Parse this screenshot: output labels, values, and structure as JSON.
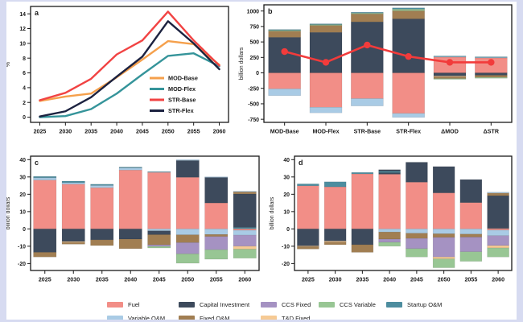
{
  "colors": {
    "fuel": "#F28E87",
    "capital": "#3D4A5C",
    "variable_om": "#A9CBE5",
    "fixed_om": "#A17E52",
    "ccs_fixed": "#A592C2",
    "ccs_variable": "#98C694",
    "startup_om": "#4D8D9F",
    "td_fixed": "#F6CA94",
    "overlay_line": "#F23B3B"
  },
  "legend": {
    "items": [
      {
        "label": "Fuel",
        "color_key": "fuel"
      },
      {
        "label": "Capital Investment",
        "color_key": "capital"
      },
      {
        "label": "CCS Fixed",
        "color_key": "ccs_fixed"
      },
      {
        "label": "CCS Variable",
        "color_key": "ccs_variable"
      },
      {
        "label": "Startup O&M",
        "color_key": "startup_om"
      },
      {
        "label": "Variable O&M",
        "color_key": "variable_om"
      },
      {
        "label": "Fixed O&M",
        "color_key": "fixed_om"
      },
      {
        "label": "T&D Fixed",
        "color_key": "td_fixed"
      }
    ]
  },
  "chart_data": [
    {
      "id": "a",
      "label": "a",
      "type": "line",
      "ylabel": "%",
      "x": [
        2025,
        2030,
        2035,
        2040,
        2045,
        2050,
        2055,
        2060
      ],
      "xlim": [
        2023.2,
        2061.8
      ],
      "ylim": [
        -0.7,
        15.0
      ],
      "yticks": [
        0,
        2,
        4,
        6,
        8,
        10,
        12,
        14
      ],
      "inner_legend": true,
      "series": [
        {
          "name": "MOD-Base",
          "color": "#F5A04C",
          "values": [
            2.2,
            2.8,
            3.2,
            5.4,
            7.8,
            10.3,
            9.9,
            7.1
          ]
        },
        {
          "name": "MOD-Flex",
          "color": "#35949A",
          "values": [
            0.0,
            0.15,
            1.1,
            3.2,
            5.8,
            8.3,
            8.65,
            6.9
          ]
        },
        {
          "name": "STR-Base",
          "color": "#F14343",
          "values": [
            2.3,
            3.3,
            5.2,
            8.5,
            10.4,
            14.3,
            10.4,
            7.0
          ]
        },
        {
          "name": "STR-Flex",
          "color": "#1C2240",
          "values": [
            0.1,
            0.8,
            2.7,
            5.5,
            8.2,
            13.0,
            10.0,
            6.5
          ]
        }
      ]
    },
    {
      "id": "b",
      "label": "b",
      "type": "stacked-bar-line",
      "ylabel": "billion dollars",
      "categories": [
        "MOD-Base",
        "MOD-Flex",
        "STR-Base",
        "STR-Flex",
        "ΔMOD",
        "ΔSTR"
      ],
      "ylim": [
        -800,
        1100
      ],
      "yticks": [
        1000,
        750,
        500,
        250,
        0,
        -250,
        -500,
        -750
      ],
      "bar_frac": 0.78,
      "bars": [
        {
          "pos": [
            [
              "capital",
              575
            ],
            [
              "fixed_om",
              100
            ],
            [
              "ccs_variable",
              14
            ],
            [
              "startup_om",
              12
            ]
          ],
          "neg": [
            [
              "fuel",
              258
            ],
            [
              "variable_om",
              110
            ]
          ]
        },
        {
          "pos": [
            [
              "capital",
              655
            ],
            [
              "fixed_om",
              112
            ],
            [
              "ccs_variable",
              14
            ],
            [
              "startup_om",
              12
            ]
          ],
          "neg": [
            [
              "fuel",
              556
            ],
            [
              "variable_om",
              90
            ]
          ]
        },
        {
          "pos": [
            [
              "capital",
              825
            ],
            [
              "fixed_om",
              128
            ],
            [
              "ccs_variable",
              14
            ],
            [
              "startup_om",
              13
            ]
          ],
          "neg": [
            [
              "fuel",
              415
            ],
            [
              "variable_om",
              120
            ]
          ]
        },
        {
          "pos": [
            [
              "capital",
              873
            ],
            [
              "fixed_om",
              130
            ],
            [
              "ccs_variable",
              28
            ],
            [
              "startup_om",
              20
            ]
          ],
          "neg": [
            [
              "fuel",
              655
            ],
            [
              "variable_om",
              65
            ]
          ]
        },
        {
          "pos": [
            [
              "fuel",
              255
            ],
            [
              "variable_om",
              8
            ],
            [
              "startup_om",
              10
            ]
          ],
          "neg": [
            [
              "capital",
              50
            ],
            [
              "td_fixed",
              12
            ],
            [
              "fixed_om",
              30
            ],
            [
              "ccs_variable",
              12
            ]
          ]
        },
        {
          "pos": [
            [
              "fuel",
              242
            ],
            [
              "variable_om",
              8
            ],
            [
              "startup_om",
              10
            ]
          ],
          "neg": [
            [
              "capital",
              38
            ],
            [
              "fixed_om",
              35
            ],
            [
              "ccs_variable",
              14
            ]
          ]
        }
      ],
      "line_values": [
        345,
        170,
        450,
        265,
        170,
        170
      ],
      "line_color": "#F23B3B"
    },
    {
      "id": "c",
      "label": "c",
      "type": "stacked-bar",
      "ylabel": "billion dollars",
      "categories": [
        2025,
        2030,
        2035,
        2040,
        2045,
        2050,
        2055,
        2060
      ],
      "ylim": [
        -24,
        42
      ],
      "yticks": [
        40,
        30,
        20,
        10,
        0,
        -10,
        -20
      ],
      "bar_frac": 0.8,
      "bars": [
        {
          "pos": [
            [
              "fuel",
              28.2
            ],
            [
              "variable_om",
              1.3
            ],
            [
              "startup_om",
              0.8
            ]
          ],
          "neg": [
            [
              "capital",
              13.5
            ],
            [
              "fixed_om",
              2.7
            ]
          ]
        },
        {
          "pos": [
            [
              "fuel",
              25.8
            ],
            [
              "variable_om",
              0.9
            ],
            [
              "startup_om",
              0.9
            ]
          ],
          "neg": [
            [
              "capital",
              7.3
            ],
            [
              "td_fixed",
              0.5
            ],
            [
              "fixed_om",
              1.0
            ]
          ]
        },
        {
          "pos": [
            [
              "fuel",
              23.8
            ],
            [
              "variable_om",
              1.3
            ],
            [
              "startup_om",
              0.7
            ]
          ],
          "neg": [
            [
              "capital",
              6.3
            ],
            [
              "fixed_om",
              3.3
            ]
          ]
        },
        {
          "pos": [
            [
              "fuel",
              34.0
            ],
            [
              "variable_om",
              1.2
            ],
            [
              "startup_om",
              0.5
            ]
          ],
          "neg": [
            [
              "capital",
              5.9
            ],
            [
              "fixed_om",
              5.5
            ]
          ]
        },
        {
          "pos": [
            [
              "fuel",
              32.6
            ],
            [
              "variable_om",
              0.3
            ],
            [
              "startup_om",
              0.2
            ]
          ],
          "neg": [
            [
              "variable_om",
              1.1
            ],
            [
              "capital",
              2.2
            ],
            [
              "fixed_om",
              5.9
            ],
            [
              "ccs_fixed",
              0.9
            ],
            [
              "ccs_variable",
              0.9
            ]
          ]
        },
        {
          "pos": [
            [
              "fuel",
              29.8
            ],
            [
              "capital",
              9.7
            ],
            [
              "variable_om",
              0.5
            ]
          ],
          "neg": [
            [
              "variable_om",
              3.4
            ],
            [
              "fixed_om",
              4.5
            ],
            [
              "ccs_fixed",
              6.5
            ],
            [
              "ccs_variable",
              5.4
            ]
          ]
        },
        {
          "pos": [
            [
              "fuel",
              15.0
            ],
            [
              "capital",
              14.7
            ],
            [
              "variable_om",
              0.4
            ]
          ],
          "neg": [
            [
              "variable_om",
              3.2
            ],
            [
              "fixed_om",
              1.2
            ],
            [
              "ccs_fixed",
              7.6
            ],
            [
              "ccs_variable",
              5.5
            ]
          ]
        },
        {
          "pos": [
            [
              "startup_om",
              0.9
            ],
            [
              "capital",
              19.3
            ],
            [
              "fixed_om",
              1.2
            ],
            [
              "variable_om",
              0.4
            ]
          ],
          "neg": [
            [
              "fuel",
              0.8
            ],
            [
              "variable_om",
              2.8
            ],
            [
              "ccs_fixed",
              6.4
            ],
            [
              "td_fixed",
              1.7
            ],
            [
              "ccs_variable",
              5.2
            ]
          ]
        }
      ]
    },
    {
      "id": "d",
      "label": "d",
      "type": "stacked-bar",
      "ylabel": "billion dollars",
      "categories": [
        2025,
        2030,
        2035,
        2040,
        2045,
        2050,
        2055,
        2060
      ],
      "ylim": [
        -24,
        42
      ],
      "yticks": [
        40,
        30,
        20,
        10,
        0,
        -10,
        -20
      ],
      "bar_frac": 0.8,
      "bars": [
        {
          "pos": [
            [
              "fuel",
              24.9
            ],
            [
              "startup_om",
              1.1
            ]
          ],
          "neg": [
            [
              "capital",
              9.8
            ],
            [
              "td_fixed",
              0.4
            ],
            [
              "fixed_om",
              1.4
            ]
          ]
        },
        {
          "pos": [
            [
              "fuel",
              24.3
            ],
            [
              "startup_om",
              2.9
            ]
          ],
          "neg": [
            [
              "capital",
              7.0
            ],
            [
              "td_fixed",
              0.6
            ],
            [
              "fixed_om",
              1.5
            ]
          ]
        },
        {
          "pos": [
            [
              "fuel",
              31.8
            ],
            [
              "startup_om",
              0.8
            ]
          ],
          "neg": [
            [
              "capital",
              9.1
            ],
            [
              "fixed_om",
              4.4
            ]
          ]
        },
        {
          "pos": [
            [
              "fuel",
              31.6
            ],
            [
              "capital",
              0.9
            ],
            [
              "startup_om",
              0.8
            ],
            [
              "capital",
              0.9
            ]
          ],
          "neg": [
            [
              "variable_om",
              1.8
            ],
            [
              "fixed_om",
              4.1
            ],
            [
              "ccs_fixed",
              1.8
            ],
            [
              "ccs_variable",
              2.3
            ]
          ]
        },
        {
          "pos": [
            [
              "fuel",
              27.0
            ],
            [
              "capital",
              11.5
            ]
          ],
          "neg": [
            [
              "variable_om",
              2.5
            ],
            [
              "fixed_om",
              3.0
            ],
            [
              "ccs_fixed",
              5.9
            ],
            [
              "ccs_variable",
              4.8
            ]
          ]
        },
        {
          "pos": [
            [
              "fuel",
              20.8
            ],
            [
              "capital",
              15.2
            ]
          ],
          "neg": [
            [
              "variable_om",
              2.8
            ],
            [
              "fixed_om",
              2.1
            ],
            [
              "ccs_fixed",
              11.3
            ],
            [
              "td_fixed",
              1.1
            ],
            [
              "ccs_variable",
              5.1
            ]
          ]
        },
        {
          "pos": [
            [
              "fuel",
              15.2
            ],
            [
              "capital",
              13.3
            ]
          ],
          "neg": [
            [
              "variable_om",
              3.0
            ],
            [
              "fixed_om",
              1.7
            ],
            [
              "ccs_fixed",
              8.5
            ],
            [
              "ccs_variable",
              5.5
            ]
          ]
        },
        {
          "pos": [
            [
              "fuel",
              0.3
            ],
            [
              "capital",
              18.9
            ],
            [
              "fixed_om",
              1.5
            ],
            [
              "variable_om",
              0.5
            ]
          ],
          "neg": [
            [
              "fuel",
              0.7
            ],
            [
              "variable_om",
              3.2
            ],
            [
              "ccs_fixed",
              5.7
            ],
            [
              "td_fixed",
              1.4
            ],
            [
              "ccs_variable",
              5.2
            ]
          ]
        }
      ]
    }
  ]
}
